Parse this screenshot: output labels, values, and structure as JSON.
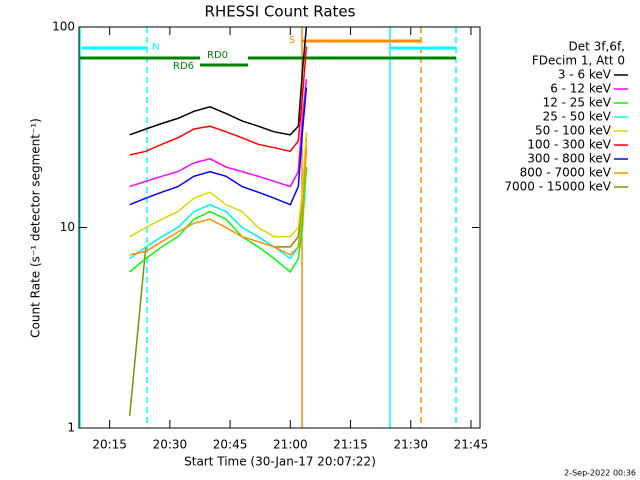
{
  "chart_data": {
    "type": "line",
    "title": "RHESSI Count Rates",
    "x_label": "Start Time (30-Jan-17 20:07:22)",
    "y_label": "Count Rate (s⁻¹ detector segment⁻¹)",
    "legend_header": [
      "Det 3f,6f,",
      "FDecim 1, Att 0"
    ],
    "footer": "2-Sep-2022 00:36",
    "annotations": [
      "N",
      "S",
      "RD0",
      "RD6"
    ],
    "log_y": true,
    "legend": "right",
    "x": [
      "20:20",
      "20:24",
      "20:28",
      "20:32",
      "20:36",
      "20:40",
      "20:44",
      "20:48",
      "20:52",
      "20:56",
      "21:00",
      "21:02",
      "21:03",
      "21:04"
    ],
    "xlim": [
      "20:07:22",
      "21:47:15"
    ],
    "xticks": [
      "20:15",
      "20:30",
      "20:45",
      "21:00",
      "21:15",
      "21:30",
      "21:45"
    ],
    "ylim": [
      1,
      100
    ],
    "yticks": [
      1,
      10,
      100
    ],
    "series": [
      {
        "name": "7000 - 15000 keV",
        "color": "#8b8b00",
        "values": [
          1.15,
          8,
          9,
          10,
          12,
          13,
          12,
          10,
          9,
          8,
          8,
          9,
          14,
          28
        ]
      },
      {
        "name": "3 - 6 keV",
        "color": "#000000",
        "values": [
          29,
          31,
          33,
          35,
          38,
          40,
          37,
          34,
          32,
          30,
          29,
          32,
          60,
          100
        ]
      },
      {
        "name": "6 - 12 keV",
        "color": "#ff00ff",
        "values": [
          16,
          17,
          18,
          19,
          21,
          22,
          20,
          19,
          18,
          17,
          16,
          19,
          35,
          55
        ]
      },
      {
        "name": "12 - 25 keV",
        "color": "#00ff00",
        "values": [
          6,
          7,
          8,
          9,
          11,
          12,
          11,
          9,
          8,
          7,
          6,
          7,
          10,
          20
        ]
      },
      {
        "name": "25 - 50 keV",
        "color": "#00ffff",
        "values": [
          7,
          8,
          9,
          10,
          12,
          13,
          12,
          10,
          9,
          8,
          7,
          8,
          12,
          25
        ]
      },
      {
        "name": "50 - 100 keV",
        "color": "#d8d800",
        "values": [
          9,
          10,
          11,
          12,
          14,
          15,
          13,
          12,
          10,
          9,
          9,
          10,
          15,
          30
        ]
      },
      {
        "name": "100 - 300 keV",
        "color": "#ff0000",
        "values": [
          23,
          24,
          26,
          28,
          31,
          32,
          30,
          28,
          26,
          25,
          24,
          27,
          45,
          80
        ]
      },
      {
        "name": "300 - 800 keV",
        "color": "#0000ff",
        "values": [
          13,
          14,
          15,
          16,
          18,
          19,
          18,
          16,
          15,
          14,
          13,
          16,
          30,
          50
        ]
      },
      {
        "name": "800 - 7000 keV",
        "color": "#ff8c00",
        "values": [
          7.3,
          7.6,
          8.5,
          9.5,
          10.5,
          11,
          10,
          9,
          8.5,
          8,
          7.3,
          8,
          12,
          25
        ]
      }
    ]
  }
}
